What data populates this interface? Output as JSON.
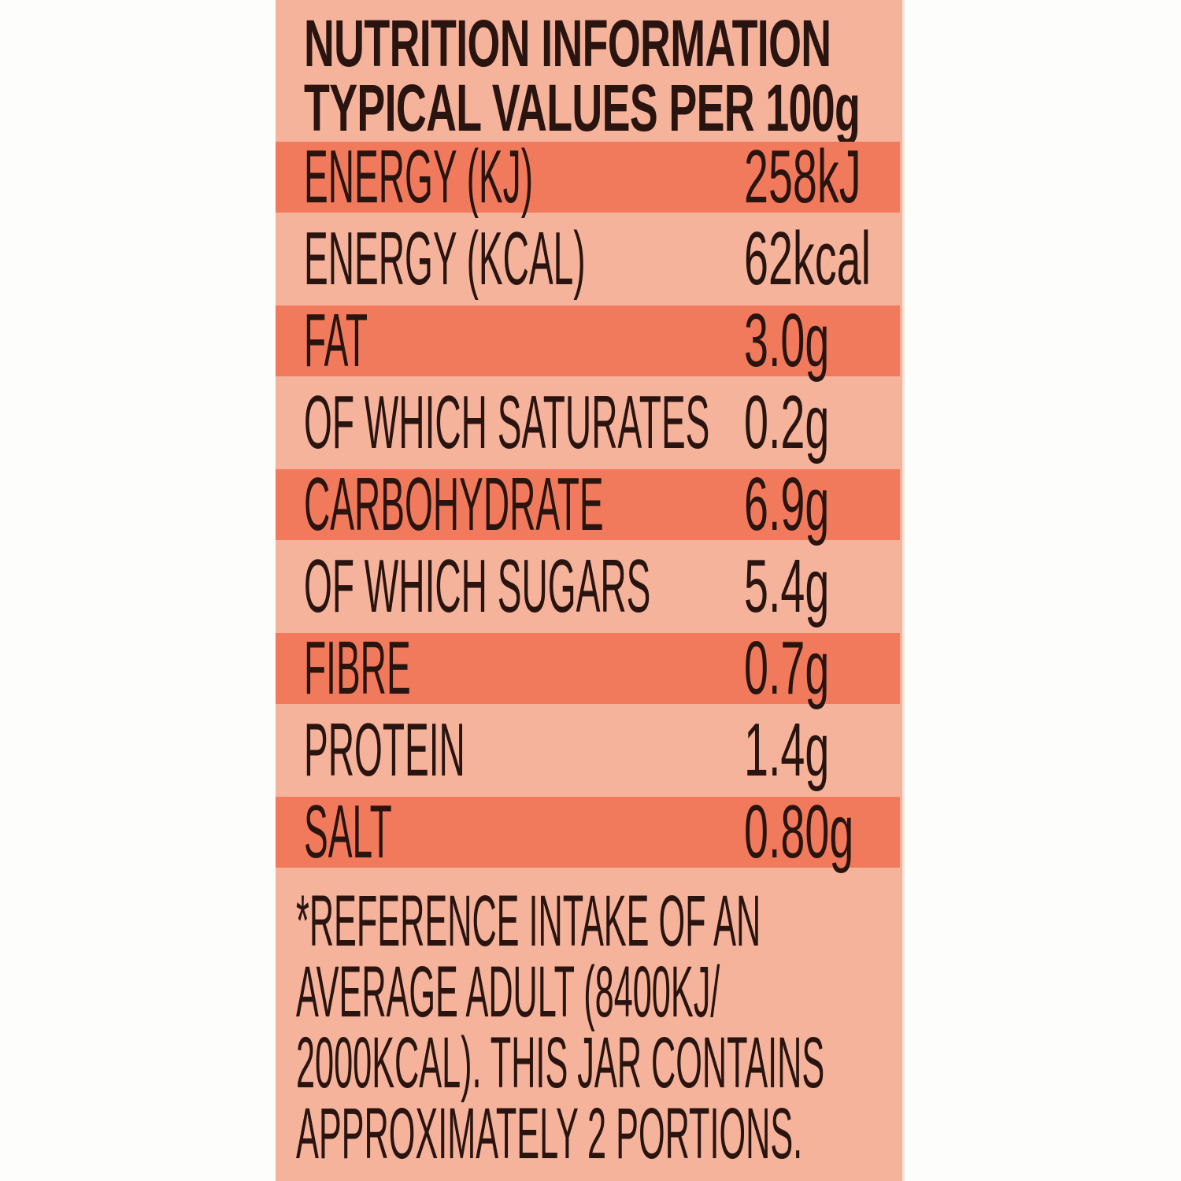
{
  "header": {
    "title": "NUTRITION INFORMATION",
    "subtitle": "TYPICAL VALUES PER 100g"
  },
  "colors": {
    "panel": "#f6b39c",
    "stripe": "#f27a5c",
    "text": "#2a1410"
  },
  "rows": [
    {
      "label": "ENERGY (KJ)",
      "value": "258kJ"
    },
    {
      "label": "ENERGY (KCAL)",
      "value": "62kcal"
    },
    {
      "label": "FAT",
      "value": "3.0g"
    },
    {
      "label": "OF WHICH SATURATES",
      "value": "0.2g"
    },
    {
      "label": "CARBOHYDRATE",
      "value": "6.9g"
    },
    {
      "label": "OF WHICH SUGARS",
      "value": "5.4g"
    },
    {
      "label": "FIBRE",
      "value": "0.7g"
    },
    {
      "label": "PROTEIN",
      "value": "1.4g"
    },
    {
      "label": "SALT",
      "value": "0.80g"
    }
  ],
  "footnote": [
    "*REFERENCE INTAKE OF AN",
    "AVERAGE ADULT (8400KJ/",
    "2000KCAL). THIS JAR CONTAINS",
    "APPROXIMATELY 2 PORTIONS."
  ]
}
